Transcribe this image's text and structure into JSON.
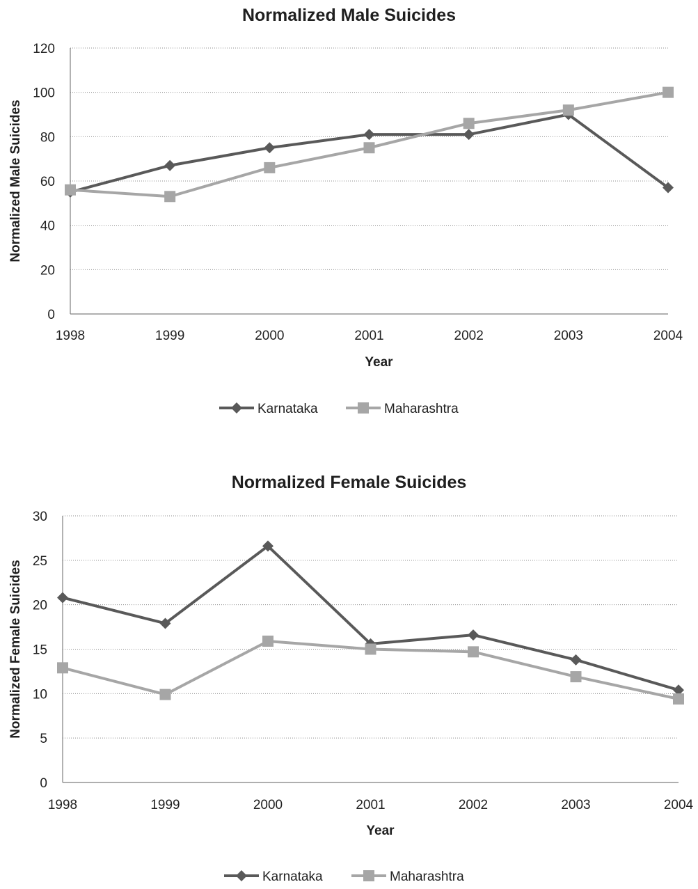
{
  "chart_data": [
    {
      "type": "line",
      "title": "Normalized Male Suicides",
      "xlabel": "Year",
      "ylabel": "Normalized Male Suicides",
      "categories": [
        "1998",
        "1999",
        "2000",
        "2001",
        "2002",
        "2003",
        "2004"
      ],
      "ylim": [
        0,
        120
      ],
      "yticks": [
        0,
        20,
        40,
        60,
        80,
        100,
        120
      ],
      "grid": true,
      "legend_position": "bottom",
      "series": [
        {
          "name": "Karnataka",
          "marker": "diamond",
          "color": "#595959",
          "values": [
            55,
            67,
            75,
            81,
            81,
            90,
            57
          ]
        },
        {
          "name": "Maharashtra",
          "marker": "square",
          "color": "#a6a6a6",
          "values": [
            56,
            53,
            66,
            75,
            86,
            92,
            100
          ]
        }
      ]
    },
    {
      "type": "line",
      "title": "Normalized Female Suicides",
      "xlabel": "Year",
      "ylabel": "Normalized Female Suicides",
      "categories": [
        "1998",
        "1999",
        "2000",
        "2001",
        "2002",
        "2003",
        "2004"
      ],
      "ylim": [
        0,
        30
      ],
      "yticks": [
        0,
        5,
        10,
        15,
        20,
        25,
        30
      ],
      "grid": true,
      "legend_position": "bottom",
      "series": [
        {
          "name": "Karnataka",
          "marker": "diamond",
          "color": "#595959",
          "values": [
            20.8,
            17.9,
            26.6,
            15.6,
            16.6,
            13.8,
            10.4
          ]
        },
        {
          "name": "Maharashtra",
          "marker": "square",
          "color": "#a6a6a6",
          "values": [
            12.9,
            9.9,
            15.9,
            15.0,
            14.7,
            11.9,
            9.4
          ]
        }
      ]
    }
  ]
}
